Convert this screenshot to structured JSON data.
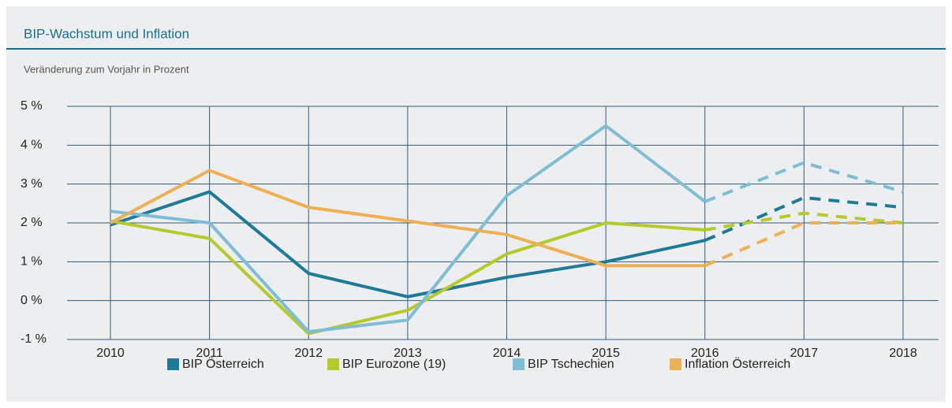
{
  "chart_data": {
    "type": "line",
    "title": "BIP-Wachstum und Inflation",
    "subtitle": "Veränderung zum Vorjahr in Prozent",
    "categories": [
      "2010",
      "2011",
      "2012",
      "2013",
      "2014",
      "2015",
      "2016",
      "2017",
      "2018"
    ],
    "dashed_from": "2016",
    "series": [
      {
        "name": "BIP Österreich",
        "color": "#1f7a98",
        "values": [
          1.95,
          2.8,
          0.7,
          0.1,
          0.6,
          1.0,
          1.55,
          2.65,
          2.4
        ]
      },
      {
        "name": "BIP Eurozone (19)",
        "color": "#b6c92b",
        "values": [
          2.05,
          1.6,
          -0.85,
          -0.25,
          1.2,
          2.0,
          1.82,
          2.25,
          2.0
        ]
      },
      {
        "name": "BIP Tschechien",
        "color": "#7fbdd4",
        "values": [
          2.3,
          2.0,
          -0.8,
          -0.5,
          2.7,
          4.5,
          2.55,
          3.55,
          2.8
        ]
      },
      {
        "name": "Inflation Österreich",
        "color": "#eeaf55",
        "values": [
          2.0,
          3.35,
          2.4,
          2.05,
          1.7,
          0.9,
          0.9,
          2.0,
          2.0
        ]
      }
    ],
    "ylim": [
      -1,
      5
    ],
    "yticks": [
      {
        "value": -1,
        "label": "-1 %"
      },
      {
        "value": 0,
        "label": "0 %"
      },
      {
        "value": 1,
        "label": "1 %"
      },
      {
        "value": 2,
        "label": "2 %"
      },
      {
        "value": 3,
        "label": "3 %"
      },
      {
        "value": 4,
        "label": "4 %"
      },
      {
        "value": 5,
        "label": "5 %"
      }
    ],
    "grid": true
  }
}
